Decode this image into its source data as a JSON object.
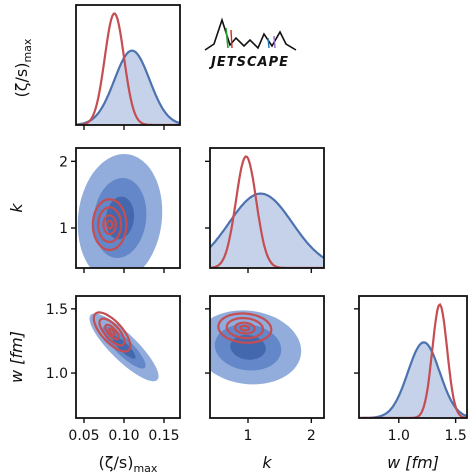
{
  "logo": {
    "text": "JETSCAPE"
  },
  "colors": {
    "posterior": "#4c72b0",
    "posterior_fill_light": "#c6d2ea",
    "posterior_fill_mid": "#7f9fd6",
    "posterior_fill_dark": "#3d63a8",
    "prior_line": "#c44e52",
    "frame": "#111111"
  },
  "chart_data": {
    "type": "corner",
    "parameters": [
      {
        "id": "zeta",
        "label_main": "(ζ/s)",
        "label_sub": "max",
        "range": [
          0.04,
          0.17
        ],
        "ticks": [
          0.05,
          0.1,
          0.15
        ],
        "tick_labels": [
          "0.05",
          "0.10",
          "0.15"
        ]
      },
      {
        "id": "k",
        "label_main": "k",
        "label_sub": "",
        "range": [
          0.4,
          2.2
        ],
        "ticks": [
          1,
          2
        ],
        "tick_labels": [
          "1",
          "2"
        ]
      },
      {
        "id": "w",
        "label_main": "w [fm]",
        "label_sub": "",
        "range": [
          0.65,
          1.6
        ],
        "ticks": [
          1.0,
          1.5
        ],
        "tick_labels": [
          "1.0",
          "1.5"
        ]
      }
    ],
    "diagonal": [
      {
        "param": "zeta",
        "blue": {
          "mean": 0.11,
          "sd": 0.022
        },
        "red": {
          "mean": 0.088,
          "sd": 0.012
        }
      },
      {
        "param": "k",
        "blue": {
          "mean": 1.2,
          "sd": 0.5
        },
        "red": {
          "mean": 0.97,
          "sd": 0.16
        }
      },
      {
        "param": "w",
        "blue": {
          "mean": 1.22,
          "sd": 0.14
        },
        "red": {
          "mean": 1.36,
          "sd": 0.065
        }
      }
    ],
    "contours": [
      {
        "row": "k",
        "col": "zeta",
        "blue": {
          "cx": 0.095,
          "cy": 1.15,
          "sx": 0.022,
          "sy": 0.4,
          "rho": 0.1
        },
        "red": {
          "cx": 0.082,
          "cy": 1.05,
          "sx": 0.011,
          "sy": 0.2,
          "rho": 0.0
        }
      },
      {
        "row": "w",
        "col": "zeta",
        "blue": {
          "cx": 0.1,
          "cy": 1.2,
          "sx": 0.018,
          "sy": 0.11,
          "rho": -0.85
        },
        "red": {
          "cx": 0.085,
          "cy": 1.32,
          "sx": 0.012,
          "sy": 0.08,
          "rho": -0.7
        }
      },
      {
        "row": "w",
        "col": "k",
        "blue": {
          "cx": 1.0,
          "cy": 1.2,
          "sx": 0.35,
          "sy": 0.12,
          "rho": -0.1
        },
        "red": {
          "cx": 0.95,
          "cy": 1.35,
          "sx": 0.22,
          "sy": 0.06,
          "rho": -0.1
        }
      }
    ],
    "levels_blue": [
      2.4,
      1.5,
      0.8
    ],
    "levels_red": [
      1.9,
      1.3,
      0.7,
      0.3
    ]
  }
}
